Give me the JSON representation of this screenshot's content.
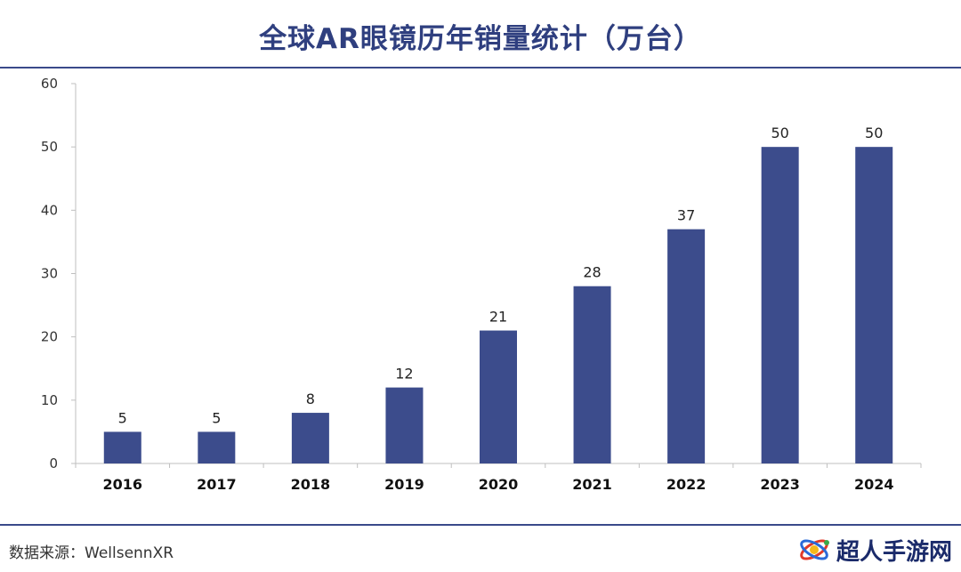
{
  "title": "全球AR眼镜历年销量统计（万台）",
  "source": "数据来源：WellsennXR",
  "watermark": {
    "text": "超人手游网",
    "icon": "orbit-logo-icon"
  },
  "colors": {
    "bar": "#3c4c8c",
    "title": "#2f3f7f",
    "rule": "#3a4a8a"
  },
  "chart_data": {
    "type": "bar",
    "title": "全球AR眼镜历年销量统计（万台）",
    "xlabel": "",
    "ylabel": "",
    "categories": [
      "2016",
      "2017",
      "2018",
      "2019",
      "2020",
      "2021",
      "2022",
      "2023",
      "2024"
    ],
    "values": [
      5,
      5,
      8,
      12,
      21,
      28,
      37,
      50,
      50
    ],
    "data_labels": [
      "5",
      "5",
      "8",
      "12",
      "21",
      "28",
      "37",
      "50",
      "50"
    ],
    "ylim": [
      0,
      60
    ],
    "yticks": [
      0,
      10,
      20,
      30,
      40,
      50,
      60
    ],
    "grid": false,
    "legend": "none"
  }
}
